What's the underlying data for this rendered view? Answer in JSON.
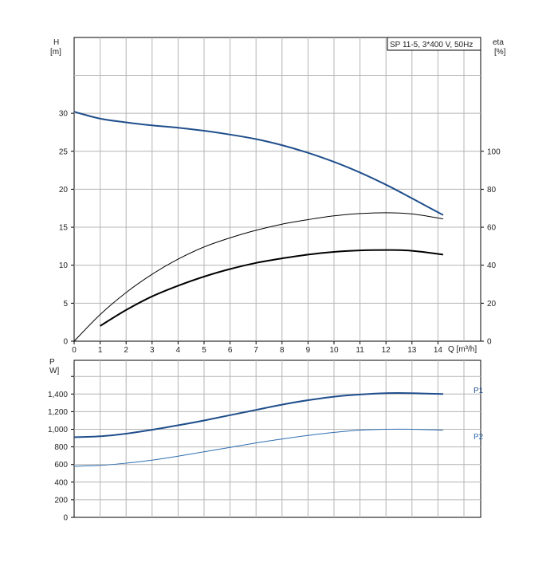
{
  "chart_data": [
    {
      "type": "line",
      "title": "SP 11-5, 3*400 V, 50Hz",
      "xlabel": "Q [m³/h]",
      "ylabel_left_name": "H",
      "ylabel_left_unit": "[m]",
      "ylabel_right_name": "eta",
      "ylabel_right_unit": "[%]",
      "xlim": [
        0,
        15
      ],
      "ylim_left": [
        0,
        40
      ],
      "ylim_right": [
        0,
        160
      ],
      "grid": true,
      "x_ticks": [
        "0",
        "1",
        "2",
        "3",
        "4",
        "5",
        "6",
        "7",
        "8",
        "9",
        "10",
        "11",
        "12",
        "13",
        "14"
      ],
      "y_left_ticks": [
        "0",
        "5",
        "10",
        "15",
        "20",
        "25",
        "30"
      ],
      "y_right_ticks": [
        "0",
        "20",
        "40",
        "60",
        "80",
        "100"
      ],
      "series": [
        {
          "key": "H",
          "axis": "left",
          "color": "#1f4e8c",
          "width": 2,
          "points": [
            [
              0,
              30.2
            ],
            [
              1,
              29.3
            ],
            [
              2,
              28.8
            ],
            [
              3,
              28.4
            ],
            [
              4,
              28.1
            ],
            [
              5,
              27.7
            ],
            [
              6,
              27.2
            ],
            [
              7,
              26.6
            ],
            [
              8,
              25.8
            ],
            [
              9,
              24.8
            ],
            [
              10,
              23.6
            ],
            [
              11,
              22.2
            ],
            [
              12,
              20.6
            ],
            [
              13,
              18.8
            ],
            [
              14.2,
              16.6
            ]
          ]
        },
        {
          "key": "eta_thin",
          "axis": "right",
          "color": "#000000",
          "width": 1,
          "points": [
            [
              0,
              0
            ],
            [
              1,
              14
            ],
            [
              2,
              25.6
            ],
            [
              3,
              35.2
            ],
            [
              4,
              43.2
            ],
            [
              5,
              49.6
            ],
            [
              6,
              54.4
            ],
            [
              7,
              58.4
            ],
            [
              8,
              61.6
            ],
            [
              9,
              64
            ],
            [
              10,
              66
            ],
            [
              11,
              67.2
            ],
            [
              12,
              67.6
            ],
            [
              13,
              67
            ],
            [
              14.2,
              64.4
            ]
          ]
        },
        {
          "key": "eta_thick",
          "axis": "right",
          "color": "#000000",
          "width": 2,
          "points": [
            [
              1,
              8
            ],
            [
              2,
              16.4
            ],
            [
              3,
              23.6
            ],
            [
              4,
              29.2
            ],
            [
              5,
              34
            ],
            [
              6,
              38
            ],
            [
              7,
              41.2
            ],
            [
              8,
              43.6
            ],
            [
              9,
              45.6
            ],
            [
              10,
              47
            ],
            [
              11,
              47.8
            ],
            [
              12,
              48
            ],
            [
              13,
              47.6
            ],
            [
              14.2,
              45.6
            ]
          ]
        }
      ]
    },
    {
      "type": "line",
      "ylabel_name": "P",
      "ylabel_unit": "W]",
      "xlim": [
        0,
        15
      ],
      "ylim": [
        0,
        1600
      ],
      "grid": true,
      "y_ticks": [
        "0",
        "200",
        "400",
        "600",
        "800",
        "1,000",
        "1,200",
        "1,400"
      ],
      "series": [
        {
          "name": "P1",
          "color": "#1f4e8c",
          "width": 2,
          "points": [
            [
              0,
              910
            ],
            [
              1,
              920
            ],
            [
              2,
              950
            ],
            [
              3,
              995
            ],
            [
              4,
              1045
            ],
            [
              5,
              1100
            ],
            [
              6,
              1160
            ],
            [
              7,
              1220
            ],
            [
              8,
              1280
            ],
            [
              9,
              1330
            ],
            [
              10,
              1370
            ],
            [
              11,
              1395
            ],
            [
              12,
              1410
            ],
            [
              13,
              1410
            ],
            [
              14.2,
              1400
            ]
          ]
        },
        {
          "name": "P2",
          "color": "#2f6db0",
          "width": 1,
          "points": [
            [
              0,
              580
            ],
            [
              1,
              590
            ],
            [
              2,
              615
            ],
            [
              3,
              650
            ],
            [
              4,
              695
            ],
            [
              5,
              745
            ],
            [
              6,
              795
            ],
            [
              7,
              845
            ],
            [
              8,
              890
            ],
            [
              9,
              930
            ],
            [
              10,
              965
            ],
            [
              11,
              990
            ],
            [
              12,
              1000
            ],
            [
              13,
              1000
            ],
            [
              14.2,
              990
            ]
          ]
        }
      ]
    }
  ]
}
